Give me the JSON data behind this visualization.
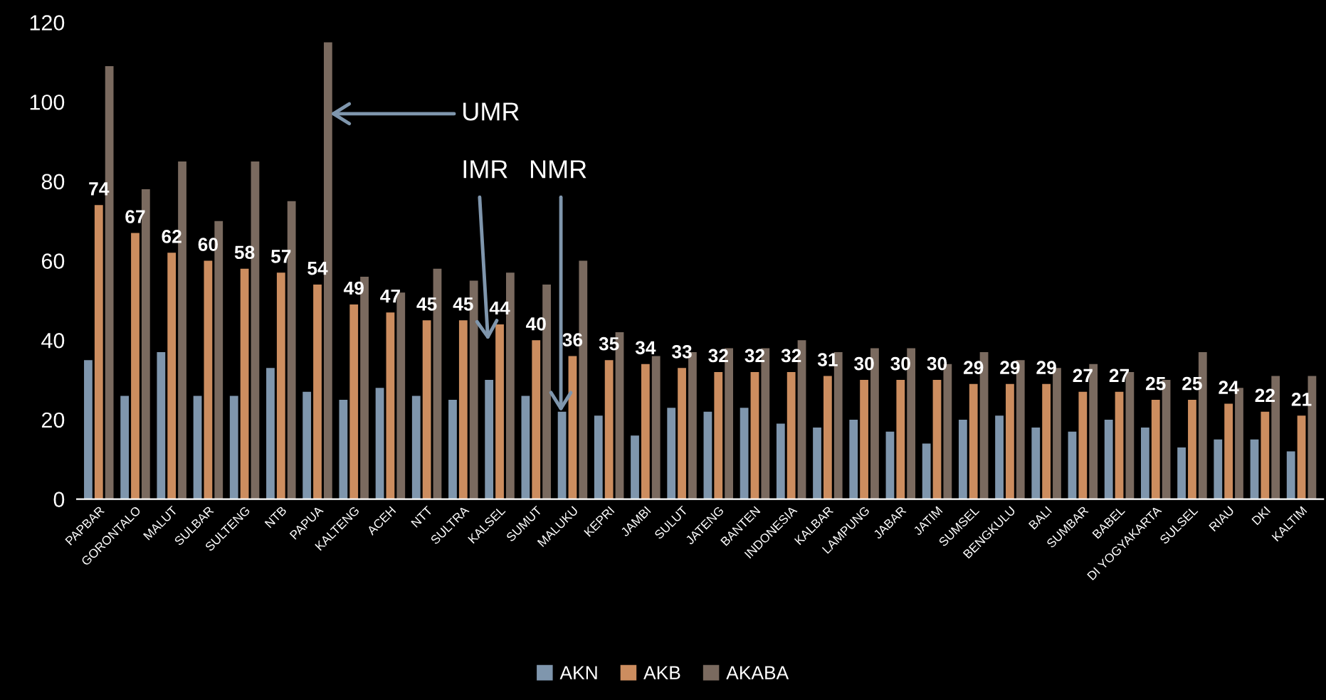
{
  "chart_data": {
    "type": "bar",
    "categories": [
      "PAPBAR",
      "GORONTALO",
      "MALUT",
      "SULBAR",
      "SULTENG",
      "NTB",
      "PAPUA",
      "KALTENG",
      "ACEH",
      "NTT",
      "SULTRA",
      "KALSEL",
      "SUMUT",
      "MALUKU",
      "KEPRI",
      "JAMBI",
      "SULUT",
      "JATENG",
      "BANTEN",
      "INDONESIA",
      "KALBAR",
      "LAMPUNG",
      "JABAR",
      "JATIM",
      "SUMSEL",
      "BENGKULU",
      "BALI",
      "SUMBAR",
      "BABEL",
      "DI YOGYAKARTA",
      "SULSEL",
      "RIAU",
      "DKI",
      "KALTIM"
    ],
    "series": [
      {
        "name": "AKN",
        "color": "#7f96ad",
        "values": [
          35,
          26,
          37,
          26,
          26,
          33,
          27,
          25,
          28,
          26,
          25,
          30,
          26,
          22,
          21,
          16,
          23,
          22,
          23,
          19,
          18,
          20,
          17,
          14,
          20,
          21,
          18,
          17,
          20,
          18,
          13,
          15,
          15,
          12
        ]
      },
      {
        "name": "AKB",
        "color": "#cc8d5f",
        "values": [
          74,
          67,
          62,
          60,
          58,
          57,
          54,
          49,
          47,
          45,
          45,
          44,
          40,
          36,
          35,
          34,
          33,
          32,
          32,
          32,
          31,
          30,
          30,
          30,
          29,
          29,
          29,
          27,
          27,
          25,
          25,
          24,
          22,
          21
        ],
        "value_labels": [
          "74",
          "67",
          "62",
          "60",
          "58",
          "57",
          "54",
          "49",
          "47",
          "45",
          "45",
          "44",
          "40",
          "36",
          "35",
          "34",
          "33",
          "32",
          "32",
          "32",
          "31",
          "30",
          "30",
          "30",
          "29",
          "29",
          "29",
          "27",
          "27",
          "25",
          "25",
          "24",
          "22",
          "21"
        ]
      },
      {
        "name": "AKABA",
        "color": "#7a6a5f",
        "values": [
          109,
          78,
          85,
          70,
          85,
          75,
          115,
          56,
          52,
          58,
          55,
          57,
          54,
          60,
          42,
          36,
          37,
          38,
          38,
          40,
          37,
          38,
          38,
          34,
          37,
          35,
          33,
          34,
          32,
          30,
          37,
          28,
          31,
          31
        ]
      }
    ],
    "ylim": [
      0,
      120
    ],
    "yticks": [
      0,
      20,
      40,
      60,
      80,
      100,
      120
    ],
    "grid": false,
    "legend": "bottom",
    "annotations": [
      "UMR",
      "IMR",
      "NMR"
    ]
  }
}
